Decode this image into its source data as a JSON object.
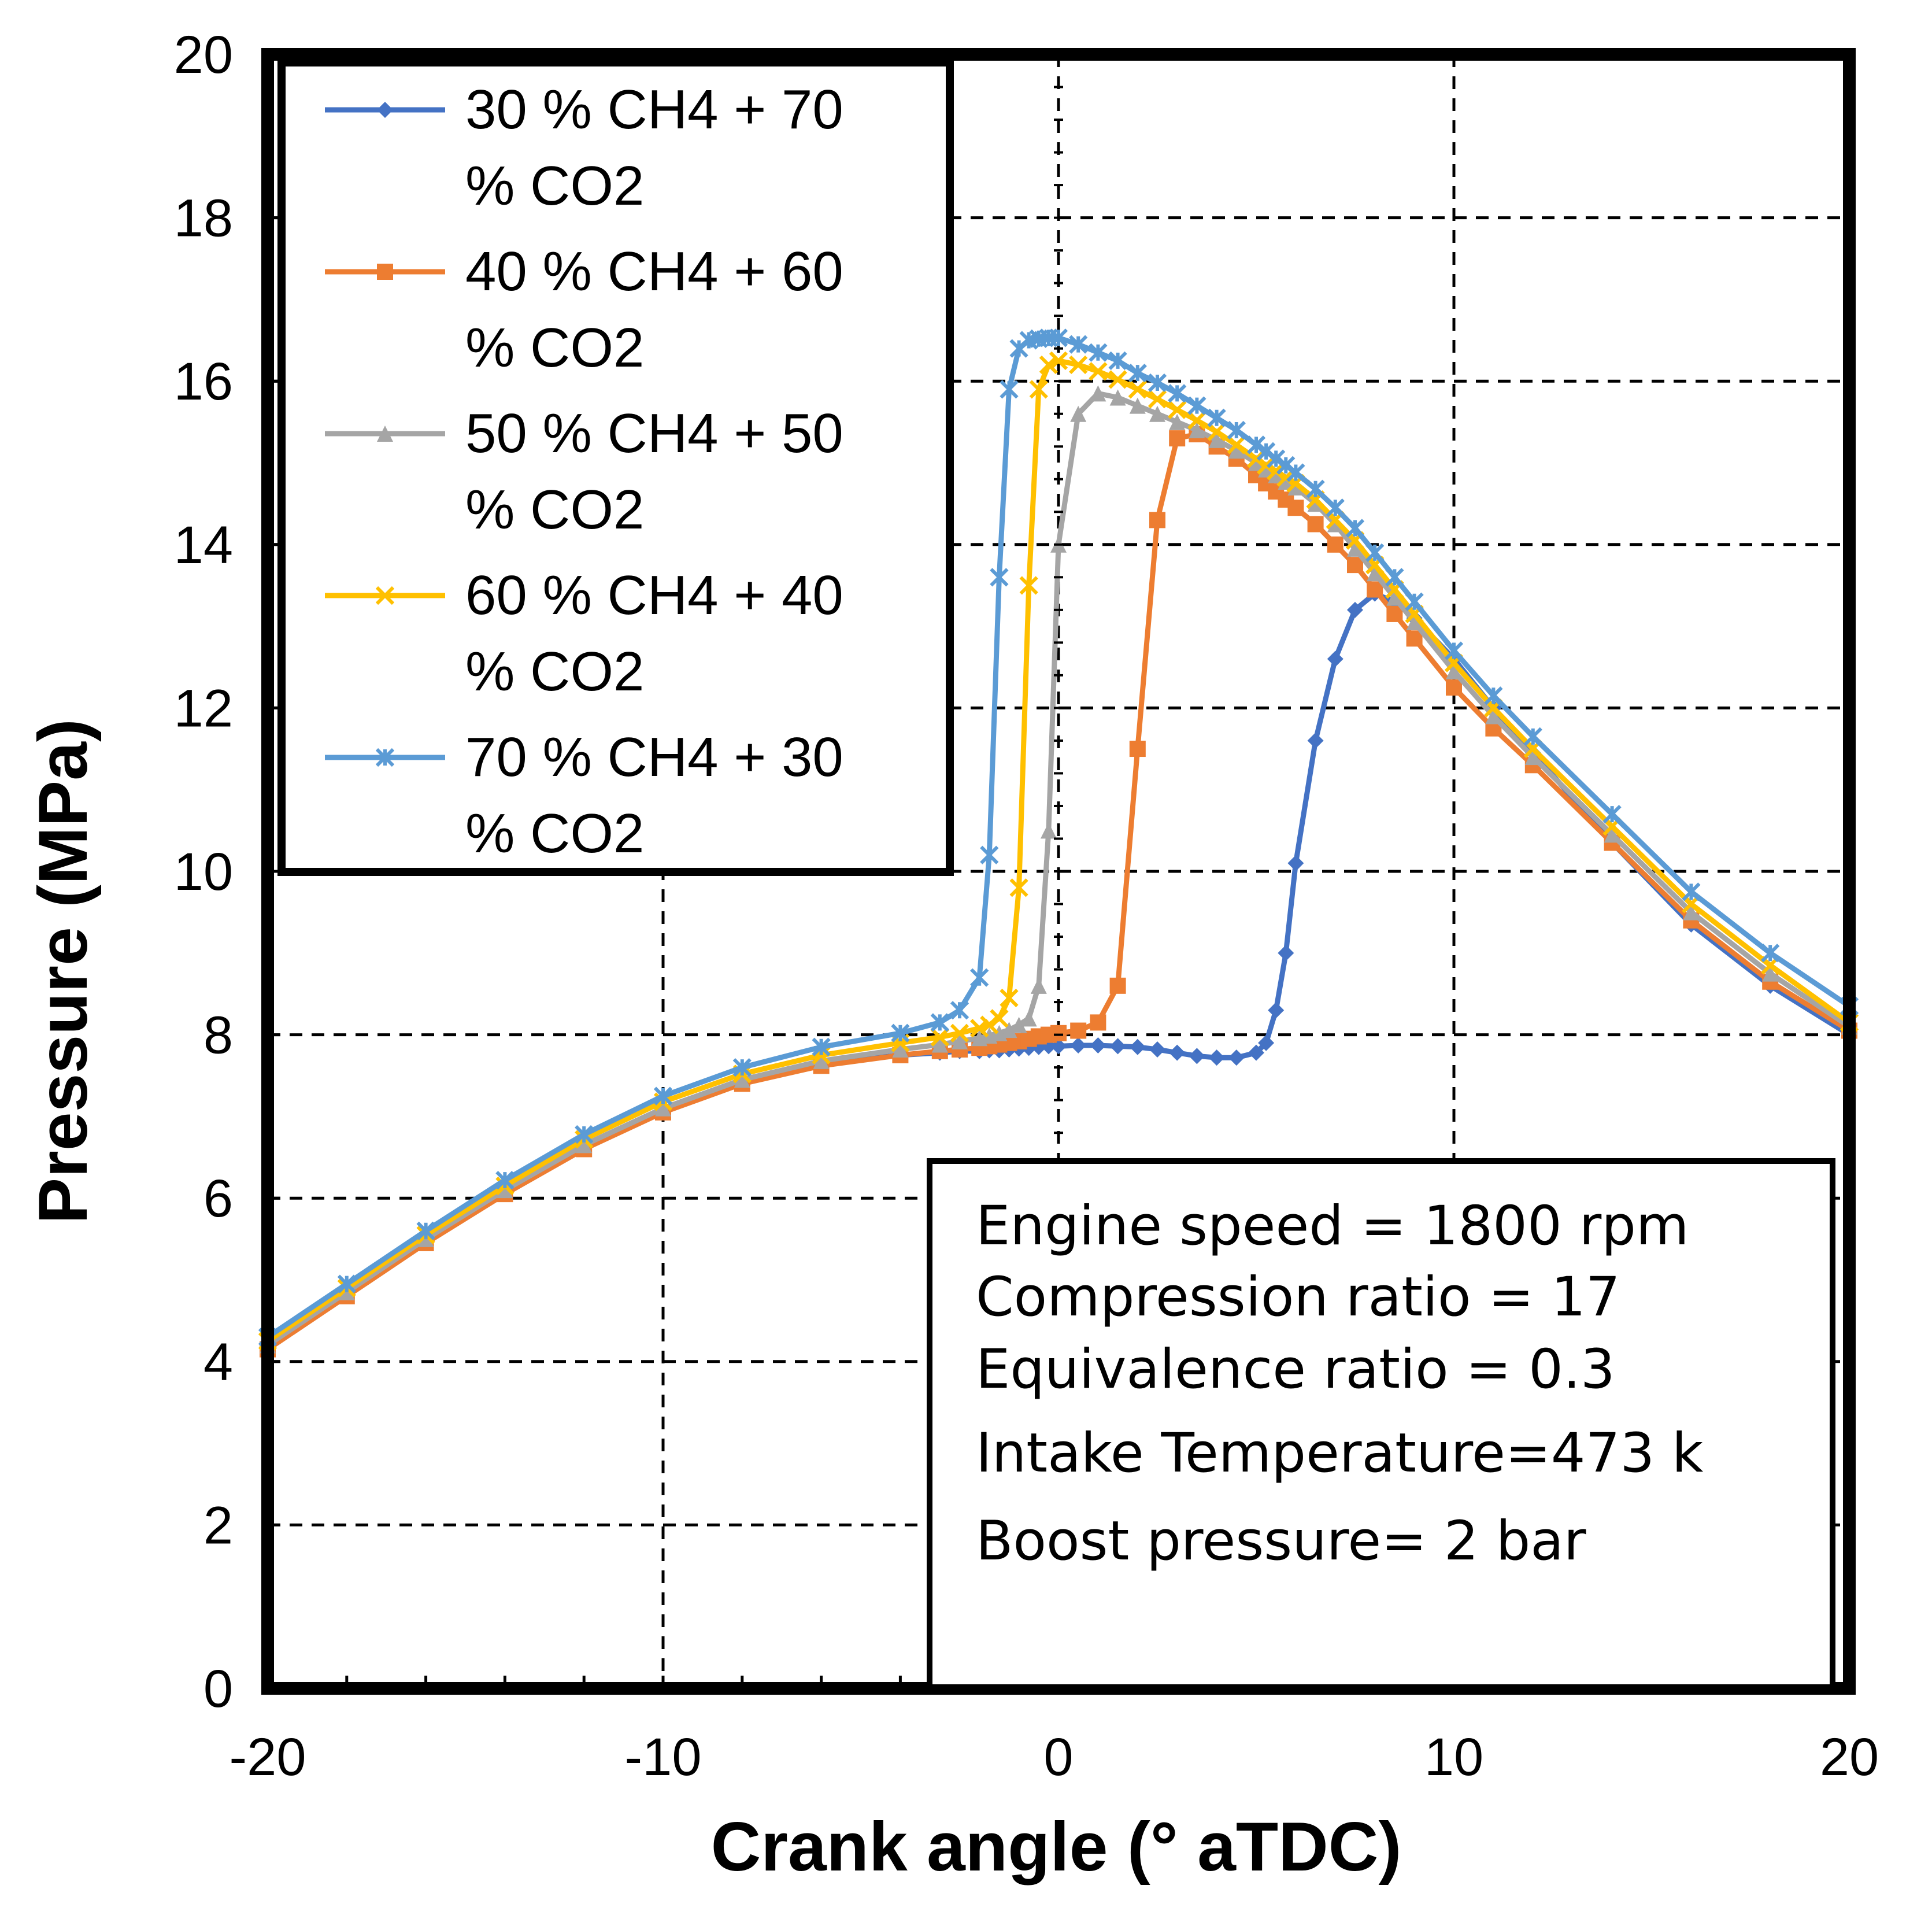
{
  "chart_data": {
    "type": "line",
    "title": "",
    "xlabel": "Crank angle (° aTDC)",
    "ylabel": "Pressure (MPa)",
    "xlim": [
      -20,
      20
    ],
    "ylim": [
      0,
      20
    ],
    "xticks": [
      "-20",
      "-10",
      "0",
      "10",
      "20"
    ],
    "yticks": [
      "0",
      "2",
      "4",
      "6",
      "8",
      "10",
      "12",
      "14",
      "16",
      "18",
      "20"
    ],
    "grid": "dashed",
    "legend_position": "top-left",
    "x": [
      -20,
      -18,
      -16,
      -14,
      -12,
      -10,
      -8,
      -6,
      -4,
      -3,
      -2.5,
      -2,
      -1.75,
      -1.5,
      -1.25,
      -1,
      -0.75,
      -0.5,
      -0.25,
      0,
      0.5,
      1,
      1.5,
      2,
      2.5,
      3,
      3.5,
      4,
      4.5,
      5,
      5.25,
      5.5,
      5.75,
      6,
      6.5,
      7,
      7.5,
      8,
      8.5,
      9,
      10,
      11,
      12,
      14,
      16,
      18,
      20
    ],
    "series": [
      {
        "name": "30 % CH4 + 70 % CO2",
        "color": "#4472C4",
        "marker": "diamond",
        "values": [
          4.2,
          4.85,
          5.5,
          6.1,
          6.65,
          7.1,
          7.45,
          7.65,
          7.75,
          7.78,
          7.8,
          7.8,
          7.81,
          7.81,
          7.82,
          7.83,
          7.84,
          7.85,
          7.86,
          7.86,
          7.87,
          7.87,
          7.86,
          7.85,
          7.82,
          7.78,
          7.74,
          7.72,
          7.72,
          7.78,
          7.9,
          8.3,
          9.0,
          10.1,
          11.6,
          12.6,
          13.2,
          13.4,
          13.3,
          13.1,
          12.6,
          12.0,
          11.45,
          10.35,
          9.35,
          8.6,
          8.0
        ]
      },
      {
        "name": "40 % CH4 + 60 % CO2",
        "color": "#ED7D31",
        "marker": "square",
        "values": [
          4.15,
          4.8,
          5.45,
          6.05,
          6.6,
          7.05,
          7.4,
          7.62,
          7.75,
          7.8,
          7.82,
          7.84,
          7.86,
          7.88,
          7.9,
          7.92,
          7.95,
          7.98,
          8.0,
          8.02,
          8.05,
          8.15,
          8.6,
          11.5,
          14.3,
          15.3,
          15.35,
          15.2,
          15.05,
          14.85,
          14.75,
          14.65,
          14.55,
          14.45,
          14.25,
          14.0,
          13.75,
          13.45,
          13.15,
          12.85,
          12.25,
          11.75,
          11.3,
          10.35,
          9.4,
          8.65,
          8.05
        ]
      },
      {
        "name": "50 % CH4 + 50 % CO2",
        "color": "#A5A5A5",
        "marker": "triangle",
        "values": [
          4.2,
          4.85,
          5.5,
          6.1,
          6.65,
          7.1,
          7.45,
          7.68,
          7.82,
          7.88,
          7.92,
          7.96,
          7.99,
          8.02,
          8.06,
          8.12,
          8.2,
          8.6,
          10.5,
          14.0,
          15.6,
          15.85,
          15.8,
          15.7,
          15.6,
          15.5,
          15.4,
          15.28,
          15.15,
          15.0,
          14.92,
          14.85,
          14.77,
          14.7,
          14.5,
          14.25,
          13.95,
          13.65,
          13.35,
          13.05,
          12.45,
          11.9,
          11.4,
          10.45,
          9.5,
          8.75,
          8.1
        ]
      },
      {
        "name": "60 % CH4 + 40 % CO2",
        "color": "#FFC000",
        "marker": "x",
        "values": [
          4.25,
          4.9,
          5.55,
          6.15,
          6.72,
          7.18,
          7.52,
          7.75,
          7.9,
          7.97,
          8.02,
          8.08,
          8.12,
          8.2,
          8.45,
          9.8,
          13.5,
          15.9,
          16.2,
          16.25,
          16.2,
          16.12,
          16.02,
          15.9,
          15.78,
          15.65,
          15.52,
          15.38,
          15.22,
          15.05,
          14.97,
          14.9,
          14.82,
          14.75,
          14.55,
          14.3,
          14.05,
          13.75,
          13.45,
          13.15,
          12.55,
          12.0,
          11.5,
          10.55,
          9.6,
          8.85,
          8.15
        ]
      },
      {
        "name": "70 % CH4 + 30 % CO2",
        "color": "#5B9BD5",
        "marker": "star",
        "values": [
          4.3,
          4.95,
          5.6,
          6.22,
          6.78,
          7.25,
          7.6,
          7.85,
          8.02,
          8.15,
          8.3,
          8.7,
          10.2,
          13.6,
          15.9,
          16.4,
          16.5,
          16.52,
          16.53,
          16.53,
          16.45,
          16.35,
          16.25,
          16.1,
          15.98,
          15.85,
          15.7,
          15.55,
          15.4,
          15.22,
          15.14,
          15.05,
          14.97,
          14.88,
          14.68,
          14.45,
          14.2,
          13.9,
          13.6,
          13.3,
          12.7,
          12.15,
          11.65,
          10.7,
          9.75,
          9.0,
          8.35
        ]
      }
    ],
    "info_box": [
      "Engine speed = 1800 rpm",
      "Compression ratio = 17",
      "Equivalence ratio = 0.3",
      "Intake Temperature=473 k",
      "Boost pressure= 2 bar"
    ]
  }
}
